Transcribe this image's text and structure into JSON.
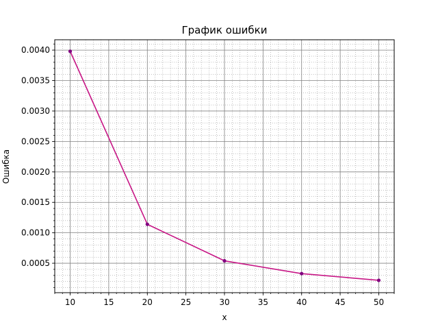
{
  "chart_data": {
    "type": "line",
    "title": "График ошибки",
    "xlabel": "x",
    "ylabel": "Ошибка",
    "x": [
      10,
      20,
      30,
      40,
      50
    ],
    "series": [
      {
        "values": [
          0.00398,
          0.00114,
          0.00054,
          0.00033,
          0.00022
        ],
        "color": "#c71585",
        "marker_color": "#800080"
      }
    ],
    "xlim": [
      8,
      52
    ],
    "ylim": [
      1.7e-05,
      0.00417
    ],
    "xticks": [
      10,
      15,
      20,
      25,
      30,
      35,
      40,
      45,
      50
    ],
    "xtick_labels": [
      "10",
      "15",
      "20",
      "25",
      "30",
      "35",
      "40",
      "45",
      "50"
    ],
    "yticks": [
      0.0005,
      0.001,
      0.0015,
      0.002,
      0.0025,
      0.003,
      0.0035,
      0.004
    ],
    "ytick_labels": [
      "0.0005",
      "0.0010",
      "0.0015",
      "0.0020",
      "0.0025",
      "0.0030",
      "0.0035",
      "0.0040"
    ],
    "x_minor_step": 1,
    "y_minor_step": 0.0001,
    "grid": true,
    "minor_grid": true,
    "colors": {
      "major_grid": "#808080",
      "minor_grid": "#808080"
    }
  }
}
